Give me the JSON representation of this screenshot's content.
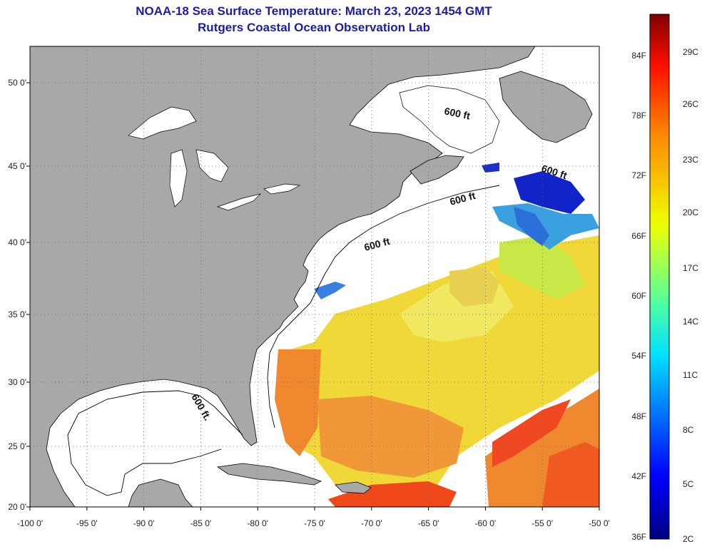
{
  "header": {
    "title": "NOAA-18 Sea Surface Temperature:  March 23, 2023 1454 GMT",
    "subtitle": "Rutgers Coastal Ocean Observation Lab"
  },
  "axes": {
    "x_ticks": [
      "-100 0'",
      "-95 0'",
      "-90 0'",
      "-85 0'",
      "-80 0'",
      "-75 0'",
      "-70 0'",
      "-65 0'",
      "-60 0'",
      "-55 0'",
      "-50 0'"
    ],
    "y_ticks": [
      "50 0'",
      "45 0'",
      "40 0'",
      "35 0'",
      "30 0'",
      "25 0'",
      "20 0'"
    ]
  },
  "isobath_labels": [
    "600 ft",
    "600 ft",
    "600 ft",
    "600 ft",
    "600 ft."
  ],
  "colorbar": {
    "f_labels": [
      "84F",
      "78F",
      "72F",
      "66F",
      "60F",
      "54F",
      "48F",
      "42F",
      "36F"
    ],
    "c_labels": [
      "29C",
      "26C",
      "23C",
      "20C",
      "17C",
      "14C",
      "11C",
      "8C",
      "5C",
      "2C"
    ]
  },
  "colors": {
    "land": "#a8a8a8",
    "ocean": "#ffffff",
    "title": "#1c1ca8",
    "warm": "#f04818",
    "orange": "#f08828",
    "yellow": "#f0e040",
    "cold": "#1020c0"
  }
}
